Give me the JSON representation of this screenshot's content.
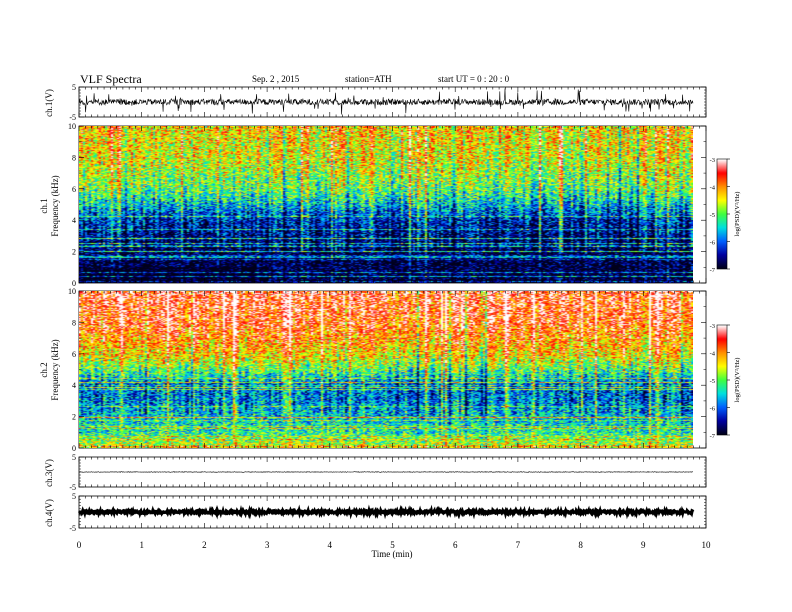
{
  "header": {
    "title": "VLF  Spectra",
    "date": "Sep. 2  , 2015",
    "station": "station=ATH",
    "start": "start  UT  =    0  : 20 : 0"
  },
  "chart_data": [
    {
      "type": "line",
      "id": "ch1_waveform",
      "ylabel": "ch.1(V)",
      "ylim": [
        -5,
        5
      ],
      "yticks": [
        "5",
        "-5"
      ],
      "xlim": [
        0,
        10
      ],
      "description_values": {
        "baseline_v": 0.0,
        "typical_amplitude_v": 1.0,
        "peak_amplitude_v": 4.0
      }
    },
    {
      "type": "heatmap",
      "id": "ch1_spectrogram",
      "ylabel": "ch.1\nFrequency  (kHz)",
      "ylabel_lines": [
        "ch.1",
        "Frequency  (kHz)"
      ],
      "ylim": [
        0,
        10
      ],
      "yticks": [
        "0",
        "2",
        "4",
        "6",
        "8",
        "10"
      ],
      "xlim": [
        0,
        9.8
      ],
      "colorbar": {
        "label": "log(PSD)(V²/Hz)",
        "range": [
          -7,
          -3
        ],
        "ticks": [
          "-3",
          "-4",
          "-5",
          "-6",
          "-7"
        ]
      },
      "profile_khz_vs_logpsd": [
        [
          0,
          -7
        ],
        [
          2,
          -6.9
        ],
        [
          4,
          -6.3
        ],
        [
          5,
          -5.6
        ],
        [
          6,
          -5.0
        ],
        [
          8,
          -4.5
        ],
        [
          10,
          -4.3
        ]
      ]
    },
    {
      "type": "heatmap",
      "id": "ch2_spectrogram",
      "ylabel": "ch.2\nFrequency  (kHz)",
      "ylabel_lines": [
        "ch.2",
        "Frequency  (kHz)"
      ],
      "ylim": [
        0,
        10
      ],
      "yticks": [
        "0",
        "2",
        "4",
        "6",
        "8",
        "10"
      ],
      "xlim": [
        0,
        9.8
      ],
      "colorbar": {
        "label": "log(PSD)(V²/Hz)",
        "range": [
          -7,
          -3
        ],
        "ticks": [
          "-3",
          "-4",
          "-5",
          "-6",
          "-7"
        ]
      },
      "profile_khz_vs_logpsd": [
        [
          0,
          -4.5
        ],
        [
          1,
          -5.3
        ],
        [
          2,
          -5.6
        ],
        [
          3,
          -5.9
        ],
        [
          4,
          -6.0
        ],
        [
          5,
          -5.0
        ],
        [
          6,
          -4.3
        ],
        [
          8,
          -3.6
        ],
        [
          10,
          -3.4
        ]
      ]
    },
    {
      "type": "line",
      "id": "ch3_waveform",
      "ylabel": "ch.3(V)",
      "ylim": [
        -5,
        5
      ],
      "yticks": [
        "5",
        "-5"
      ],
      "xlim": [
        0,
        10
      ],
      "description_values": {
        "baseline_v": 0.0,
        "typical_amplitude_v": 0.1
      }
    },
    {
      "type": "line",
      "id": "ch4_waveform",
      "ylabel": "ch.4(V)",
      "ylim": [
        -5,
        5
      ],
      "yticks": [
        "5",
        "-5"
      ],
      "xlim": [
        0,
        10
      ],
      "description_values": {
        "baseline_v": 0.0,
        "typical_amplitude_v": 0.4
      }
    }
  ],
  "xaxis": {
    "label": "Time  (min)",
    "ticks": [
      "0",
      "1",
      "2",
      "3",
      "4",
      "5",
      "6",
      "7",
      "8",
      "9",
      "10"
    ],
    "range": [
      0,
      10
    ]
  },
  "colors": {
    "scale": [
      "#00001a",
      "#0000a0",
      "#0060ff",
      "#00e0e0",
      "#40ff40",
      "#ffff00",
      "#ff9000",
      "#ff0000",
      "#ffffff"
    ]
  }
}
